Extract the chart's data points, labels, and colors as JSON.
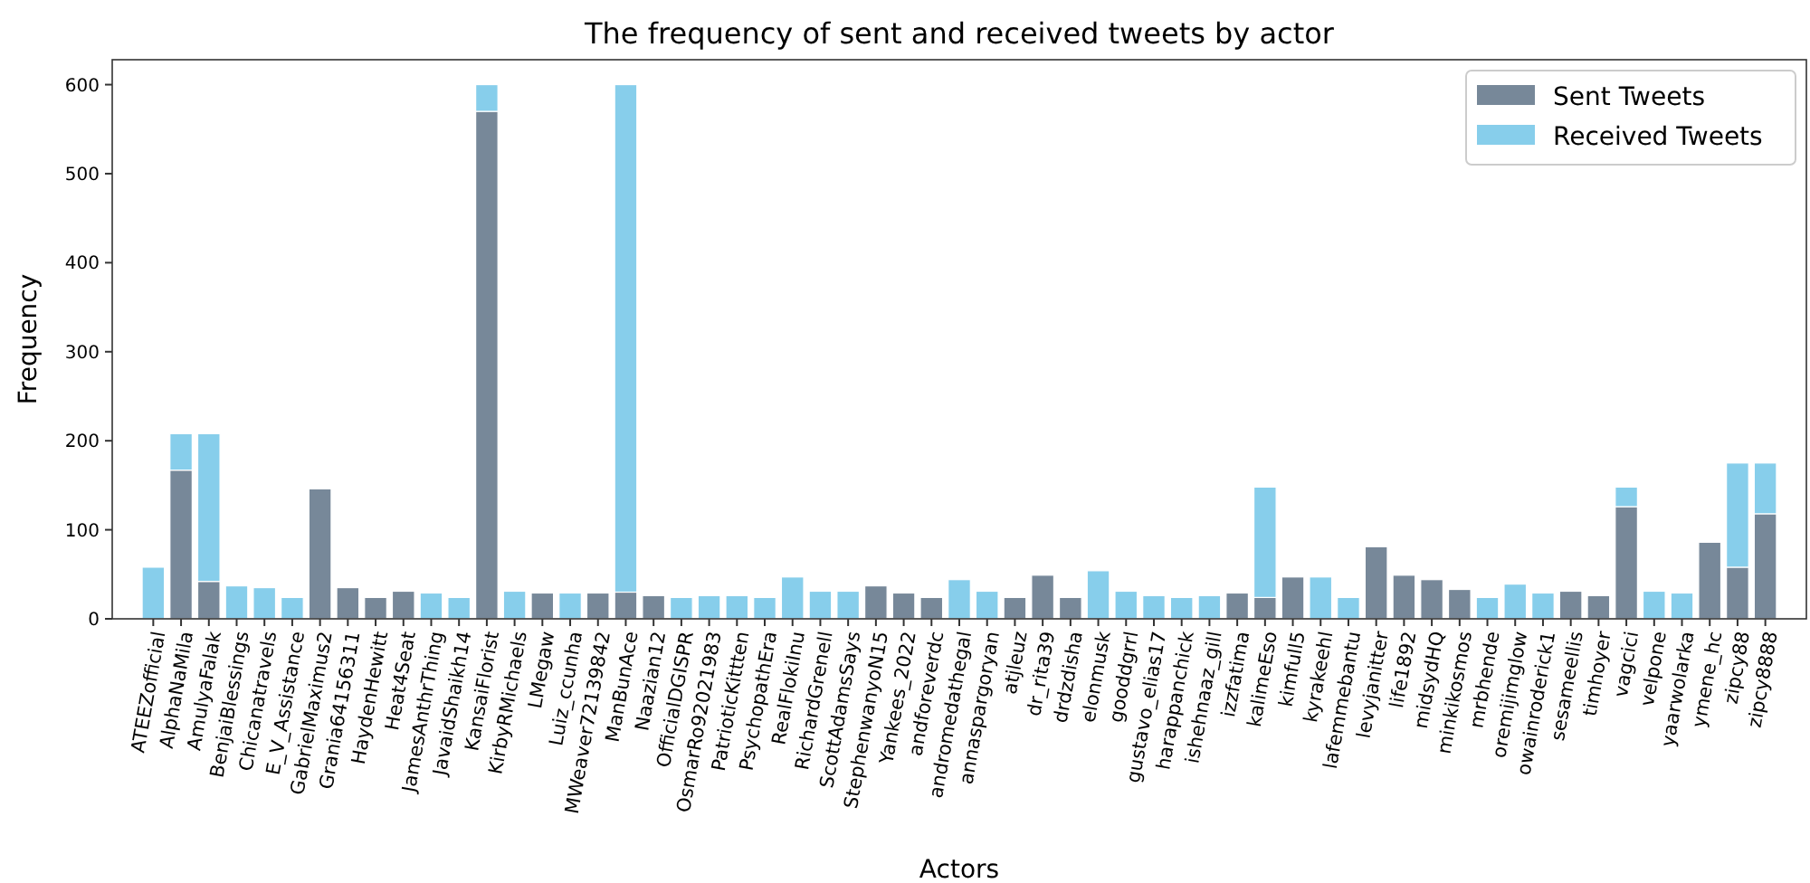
{
  "chart_data": {
    "type": "bar",
    "title": "The frequency of sent and received tweets by actor",
    "xlabel": "Actors",
    "ylabel": "Frequency",
    "categories": [
      "ATEEZofficial",
      "AlphaNaMila",
      "AmulyaFalak",
      "BenjaiBlessings",
      "Chicanatravels",
      "E_V_Assistance",
      "GabrielMaximus2",
      "Grania64156311",
      "HaydenHewitt",
      "Heat4Seat",
      "JamesAnthrThing",
      "JavaidShaikh14",
      "KansaiFlorist",
      "KirbyRMichaels",
      "LMegaw",
      "Luiz_ccunha",
      "MWeaver72139842",
      "ManBunAce",
      "Naazian12",
      "OfficialDGISPR",
      "OsmarRo92021983",
      "PatrioticKittten",
      "PsychopathEra",
      "RealFlokiInu",
      "RichardGrenell",
      "ScottAdamsSays",
      "StephenwanyoN15",
      "Yankees_2022",
      "andforeverdc",
      "andromedathegal",
      "annaspargoryan",
      "atjleuz",
      "dr_rita39",
      "drdzdisha",
      "elonmusk",
      "gooddgrrl",
      "gustavo_elias17",
      "harappanchick",
      "ishehnaaz_gill",
      "izzfatima",
      "kalimeEso",
      "kimfull5",
      "kyrakeehl",
      "lafemmebantu",
      "levyjanitter",
      "life1892",
      "midsydHQ",
      "minkikosmos",
      "mrbhende",
      "oremijimglow",
      "owainroderick1",
      "sesameellis",
      "timhoyer",
      "vagcici",
      "velpone",
      "yaarwolarka",
      "ymene_hc",
      "zipcy88",
      "zipcy8888"
    ],
    "stacked": true,
    "series": [
      {
        "name": "Sent Tweets",
        "color": "#778899",
        "values": [
          0,
          167,
          42,
          0,
          0,
          0,
          146,
          35,
          24,
          31,
          0,
          0,
          570,
          0,
          29,
          0,
          29,
          30,
          26,
          0,
          0,
          0,
          0,
          0,
          0,
          0,
          37,
          29,
          24,
          0,
          0,
          24,
          49,
          24,
          0,
          0,
          0,
          0,
          0,
          29,
          24,
          47,
          0,
          0,
          81,
          49,
          44,
          33,
          0,
          0,
          0,
          31,
          26,
          126,
          0,
          0,
          86,
          58,
          118
        ]
      },
      {
        "name": "Received Tweets",
        "color": "#87ceeb",
        "values": [
          58,
          41,
          166,
          37,
          35,
          24,
          0,
          0,
          0,
          0,
          29,
          24,
          30,
          31,
          0,
          29,
          0,
          570,
          0,
          24,
          26,
          26,
          24,
          47,
          31,
          31,
          0,
          0,
          0,
          44,
          31,
          0,
          0,
          0,
          54,
          31,
          26,
          24,
          26,
          0,
          124,
          0,
          47,
          24,
          0,
          0,
          0,
          0,
          24,
          39,
          29,
          0,
          0,
          22,
          31,
          29,
          0,
          117,
          57
        ]
      }
    ],
    "ylim": [
      0,
      628
    ],
    "yticks": [
      0,
      100,
      200,
      300,
      400,
      500,
      600
    ],
    "grid": false,
    "legend": "top right"
  }
}
